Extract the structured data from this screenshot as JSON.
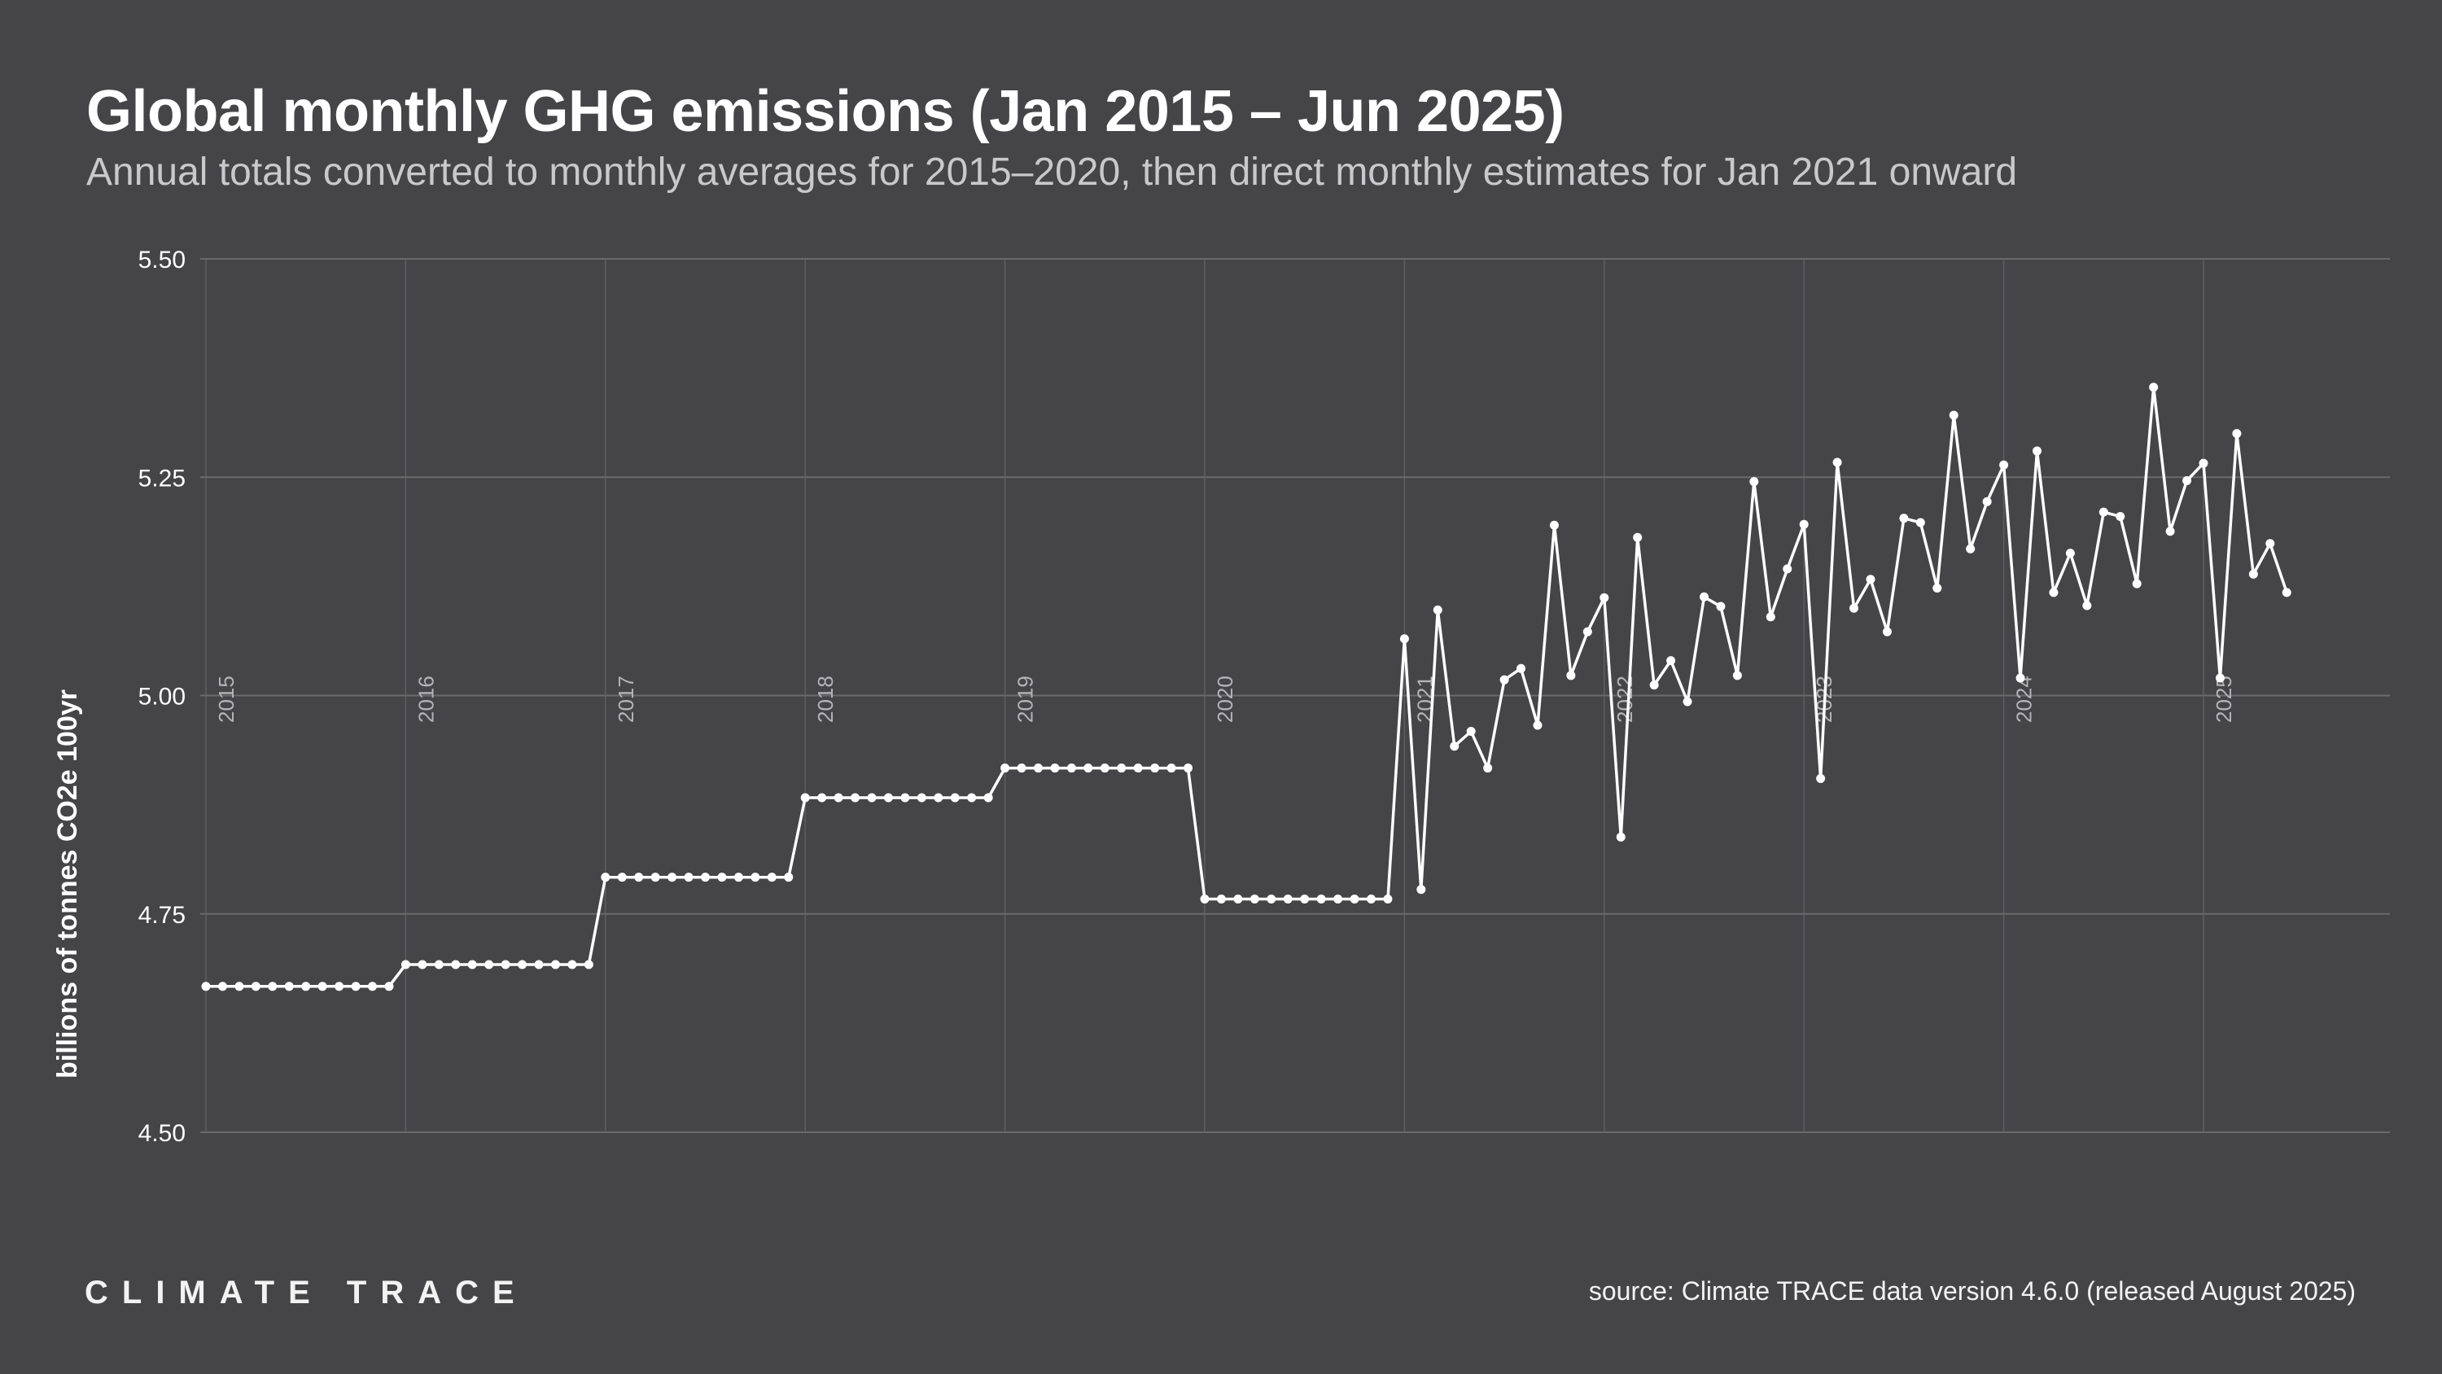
{
  "chart_data": {
    "type": "line",
    "title": "Global monthly GHG emissions (Jan 2015 – Jun 2025)",
    "subtitle": "Annual totals converted to monthly averages for 2015–2020, then direct monthly estimates for Jan 2021 onward",
    "xlabel": "",
    "ylabel": "billions of tonnes CO2e 100yr",
    "ylim": [
      4.5,
      5.5
    ],
    "yticks": [
      4.5,
      4.75,
      5.0,
      5.25,
      5.5
    ],
    "ytick_labels": [
      "4.50",
      "4.75",
      "5.00",
      "5.25",
      "5.50"
    ],
    "x_year_labels": [
      "2015",
      "2016",
      "2017",
      "2018",
      "2019",
      "2020",
      "2021",
      "2022",
      "2023",
      "2024",
      "2025"
    ],
    "x_start": "2015-01",
    "grid": true,
    "series": [
      {
        "name": "Global monthly GHG emissions",
        "values": [
          4.667,
          4.667,
          4.667,
          4.667,
          4.667,
          4.667,
          4.667,
          4.667,
          4.667,
          4.667,
          4.667,
          4.667,
          4.692,
          4.692,
          4.692,
          4.692,
          4.692,
          4.692,
          4.692,
          4.692,
          4.692,
          4.692,
          4.692,
          4.692,
          4.792,
          4.792,
          4.792,
          4.792,
          4.792,
          4.792,
          4.792,
          4.792,
          4.792,
          4.792,
          4.792,
          4.792,
          4.883,
          4.883,
          4.883,
          4.883,
          4.883,
          4.883,
          4.883,
          4.883,
          4.883,
          4.883,
          4.883,
          4.883,
          4.917,
          4.917,
          4.917,
          4.917,
          4.917,
          4.917,
          4.917,
          4.917,
          4.917,
          4.917,
          4.917,
          4.917,
          4.767,
          4.767,
          4.767,
          4.767,
          4.767,
          4.767,
          4.767,
          4.767,
          4.767,
          4.767,
          4.767,
          4.767,
          5.065,
          4.778,
          5.098,
          4.942,
          4.959,
          4.917,
          5.018,
          5.031,
          4.966,
          5.195,
          5.023,
          5.073,
          5.112,
          4.838,
          5.181,
          5.012,
          5.04,
          4.993,
          5.113,
          5.102,
          5.023,
          5.245,
          5.09,
          5.145,
          5.196,
          4.905,
          5.267,
          5.1,
          5.133,
          5.073,
          5.203,
          5.198,
          5.123,
          5.321,
          5.168,
          5.222,
          5.264,
          5.02,
          5.28,
          5.118,
          5.163,
          5.103,
          5.21,
          5.205,
          5.128,
          5.353,
          5.188,
          5.246,
          5.266,
          5.02,
          5.3,
          5.139,
          5.174,
          5.118
        ]
      }
    ]
  },
  "footer": {
    "logo_text": "CLIMATE TRACE",
    "source": "source: Climate TRACE data version 4.6.0 (released August 2025)"
  },
  "colors": {
    "background": "#454547",
    "line": "#ffffff",
    "grid": "#6a6a6d",
    "year_label": "#b4b4b8"
  }
}
